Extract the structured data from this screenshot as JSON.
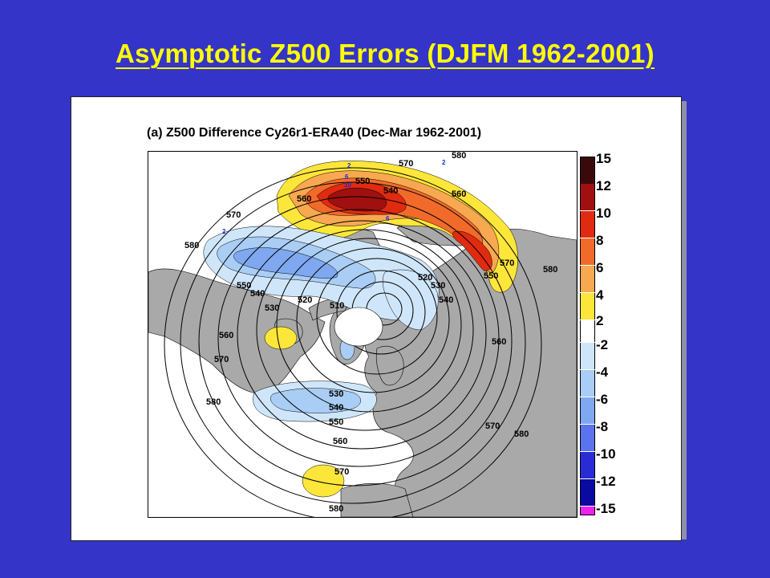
{
  "slide": {
    "title": "Asymptotic Z500 Errors (DJFM 1962-2001)"
  },
  "figure": {
    "title": "(a) Z500 Difference Cy26r1-ERA40 (Dec-Mar 1962-2001)"
  },
  "contour_labels": [
    "580",
    "570",
    "560",
    "550",
    "540",
    "530",
    "520",
    "510"
  ],
  "anomaly_labels": [
    "2",
    "6",
    "10",
    "2",
    "6",
    "2"
  ],
  "legend": [
    {
      "label": "15",
      "color": "#3a0a0a"
    },
    {
      "label": "12",
      "color": "#a01010"
    },
    {
      "label": "10",
      "color": "#e02b10"
    },
    {
      "label": "8",
      "color": "#f26a2a"
    },
    {
      "label": "6",
      "color": "#f7a850"
    },
    {
      "label": "4",
      "color": "#fde63a"
    },
    {
      "label": "2",
      "color": "#ffffff"
    },
    {
      "label": "-2",
      "color": "#cfe6fa"
    },
    {
      "label": "-4",
      "color": "#a9cdf4"
    },
    {
      "label": "-6",
      "color": "#7fa8f0"
    },
    {
      "label": "-8",
      "color": "#5b73ee"
    },
    {
      "label": "-10",
      "color": "#2b2bd6"
    },
    {
      "label": "-12",
      "color": "#0a0aa0"
    },
    {
      "label": "-15",
      "color": "#ee22ee"
    }
  ]
}
